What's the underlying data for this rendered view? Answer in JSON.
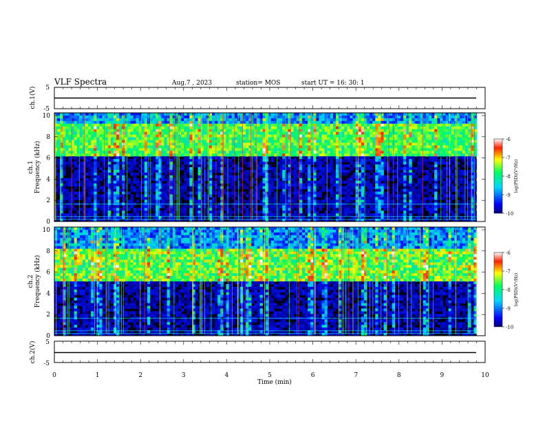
{
  "header": {
    "title": "VLF Spectra",
    "date": "Aug.7 , 2023",
    "station": "station= MOS",
    "start": "start UT = 16: 30: 1"
  },
  "chart_data": [
    {
      "type": "line",
      "name": "ch1-waveform",
      "ylabel": "ch.1(V)",
      "ylim": [
        -5,
        5
      ],
      "yticks": [
        "5",
        "-5"
      ],
      "x": [
        0,
        9.8
      ],
      "values": [
        0,
        0
      ]
    },
    {
      "type": "heatmap",
      "name": "ch1-spectrogram",
      "ylabel": "ch.1\nFrequency (kHz)",
      "ylim": [
        0,
        10
      ],
      "xlim": [
        0,
        10
      ],
      "data_xmax": 9.8,
      "yticks": [
        "10",
        "8",
        "6",
        "4",
        "2",
        "0"
      ],
      "colorbar": {
        "label": "log(PSD)(V²/Hz)",
        "range": [
          -10,
          -6
        ],
        "ticks": [
          "-6",
          "-7",
          "-8",
          "-9",
          "-10"
        ]
      },
      "dominant_band_khz": [
        6,
        9
      ]
    },
    {
      "type": "heatmap",
      "name": "ch2-spectrogram",
      "ylabel": "ch.2\nFrequency (kHz)",
      "ylim": [
        0,
        10
      ],
      "xlim": [
        0,
        10
      ],
      "data_xmax": 9.8,
      "yticks": [
        "10",
        "8",
        "6",
        "4",
        "2",
        "0"
      ],
      "colorbar": {
        "label": "log(PSD)(V²/Hz)",
        "range": [
          -10,
          -6
        ],
        "ticks": [
          "-6",
          "-7",
          "-8",
          "-9",
          "-10"
        ]
      },
      "dominant_band_khz": [
        5,
        8
      ]
    },
    {
      "type": "line",
      "name": "ch2-waveform",
      "ylabel": "ch.2(V)",
      "ylim": [
        -5,
        5
      ],
      "yticks": [
        "5",
        "-5"
      ],
      "x": [
        0,
        9.8
      ],
      "values": [
        0,
        0
      ]
    }
  ],
  "xaxis": {
    "label": "Time (min)",
    "ticks": [
      "0",
      "1",
      "2",
      "3",
      "4",
      "5",
      "6",
      "7",
      "8",
      "9",
      "10"
    ]
  }
}
